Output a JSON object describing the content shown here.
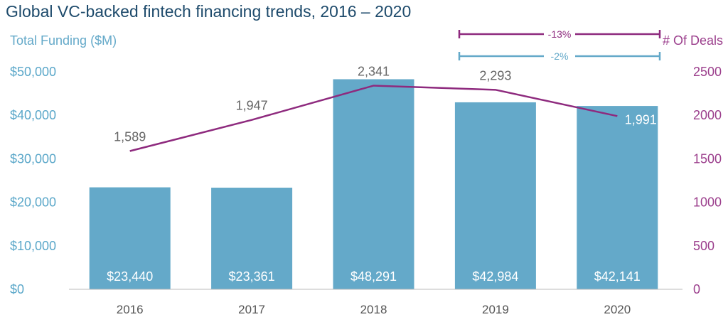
{
  "title": "Global VC-backed fintech financing trends, 2016 – 2020",
  "colors": {
    "bar": "#64a9c9",
    "line": "#8e2a7e",
    "title": "#1d4a6b",
    "left_axis": "#5aa7c9",
    "right_axis": "#9b3e8c",
    "x_axis": "#555555"
  },
  "chart_data": {
    "type": "bar",
    "title": "Global VC-backed fintech financing trends, 2016 – 2020",
    "categories": [
      "2016",
      "2017",
      "2018",
      "2019",
      "2020"
    ],
    "series": [
      {
        "name": "Total Funding ($M)",
        "type": "bar",
        "axis": "left",
        "values": [
          23440,
          23361,
          48291,
          42984,
          42141
        ],
        "labels": [
          "$23,440",
          "$23,361",
          "$48,291",
          "$42,984",
          "$42,141"
        ]
      },
      {
        "name": "# Of Deals",
        "type": "line",
        "axis": "right",
        "values": [
          1589,
          1947,
          2341,
          2293,
          1991
        ],
        "labels": [
          "1,589",
          "1,947",
          "2,341",
          "2,293",
          "1,991"
        ]
      }
    ],
    "y_left": {
      "label": "Total Funding ($M)",
      "ylim": [
        0,
        50000
      ],
      "ticks": [
        0,
        10000,
        20000,
        30000,
        40000,
        50000
      ],
      "tick_labels": [
        "$0",
        "$10,000",
        "$20,000",
        "$30,000",
        "$40,000",
        "$50,000"
      ]
    },
    "y_right": {
      "label": "# Of Deals",
      "ylim": [
        0,
        2500
      ],
      "ticks": [
        0,
        500,
        1000,
        1500,
        2000,
        2500
      ],
      "tick_labels": [
        "0",
        "500",
        "1000",
        "1500",
        "2000",
        "2500"
      ]
    },
    "grid": false,
    "annotations": [
      {
        "text": "-13%",
        "from": "2019",
        "to": "2020",
        "series": "# Of Deals"
      },
      {
        "text": "-2%",
        "from": "2019",
        "to": "2020",
        "series": "Total Funding ($M)"
      }
    ]
  }
}
